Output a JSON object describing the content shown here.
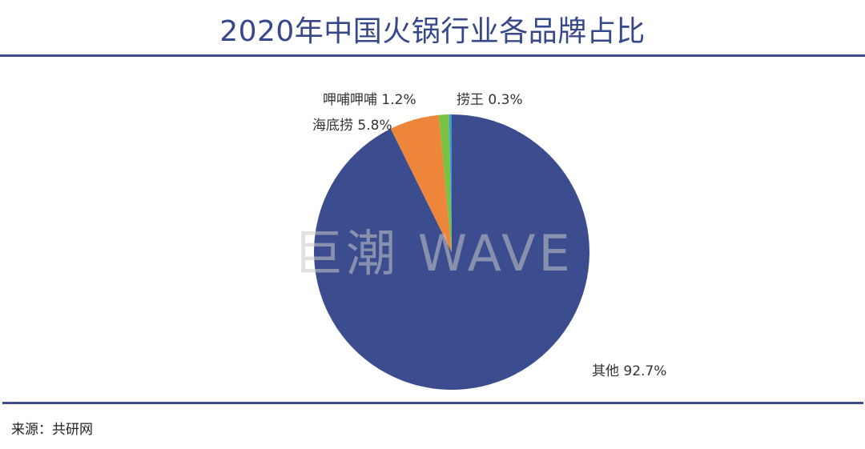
{
  "title": "2020年中国火锅行业各品牌占比",
  "watermark": "巨潮 WAVE",
  "source": "来源：共研网",
  "labels": {
    "haidilao": "海底捞 5.8%",
    "xiabu": "呷哺呷哺 1.2%",
    "laowang": "捞王 0.3%",
    "other": "其他 92.7%"
  },
  "colors": {
    "title": "#36488a",
    "rule": "#3e4d8a",
    "other": "#3b4d8f",
    "haidilao": "#ed853b",
    "xiabu": "#7cc242",
    "laowang": "#3d9ad9"
  },
  "chart_data": {
    "type": "pie",
    "title": "2020年中国火锅行业各品牌占比",
    "categories": [
      "其他",
      "海底捞",
      "呷哺呷哺",
      "捞王"
    ],
    "values": [
      92.7,
      5.8,
      1.2,
      0.3
    ],
    "unit": "%",
    "start_angle": "12 o'clock, clockwise from 其他",
    "legend": "none (labels outside slices)",
    "source": "来源：共研网"
  }
}
